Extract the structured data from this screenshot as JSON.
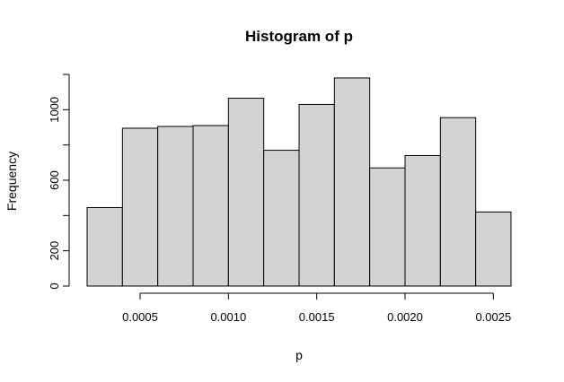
{
  "chart_data": {
    "type": "bar",
    "title": "Histogram of p",
    "xlabel": "p",
    "ylabel": "Frequency",
    "bins": [
      {
        "start": 0.0002,
        "end": 0.0004,
        "value": 445
      },
      {
        "start": 0.0004,
        "end": 0.0006,
        "value": 895
      },
      {
        "start": 0.0006,
        "end": 0.0008,
        "value": 905
      },
      {
        "start": 0.0008,
        "end": 0.001,
        "value": 910
      },
      {
        "start": 0.001,
        "end": 0.0012,
        "value": 1065
      },
      {
        "start": 0.0012,
        "end": 0.0014,
        "value": 770
      },
      {
        "start": 0.0014,
        "end": 0.0016,
        "value": 1030
      },
      {
        "start": 0.0016,
        "end": 0.0018,
        "value": 1180
      },
      {
        "start": 0.0018,
        "end": 0.002,
        "value": 670
      },
      {
        "start": 0.002,
        "end": 0.0022,
        "value": 740
      },
      {
        "start": 0.0022,
        "end": 0.0024,
        "value": 955
      },
      {
        "start": 0.0024,
        "end": 0.0026,
        "value": 420
      }
    ],
    "xlim": [
      0.0002,
      0.0026
    ],
    "ylim": [
      0,
      1200
    ],
    "x_ticks": [
      {
        "value": 0.0005,
        "label": "0.0005"
      },
      {
        "value": 0.001,
        "label": "0.0010"
      },
      {
        "value": 0.0015,
        "label": "0.0015"
      },
      {
        "value": 0.002,
        "label": "0.0020"
      },
      {
        "value": 0.0025,
        "label": "0.0025"
      }
    ],
    "y_ticks": [
      {
        "value": 0,
        "label": "0"
      },
      {
        "value": 200,
        "label": "200"
      },
      {
        "value": 400,
        "label": ""
      },
      {
        "value": 600,
        "label": "600"
      },
      {
        "value": 800,
        "label": ""
      },
      {
        "value": 1000,
        "label": "1000"
      },
      {
        "value": 1200,
        "label": ""
      }
    ],
    "bar_color": "#d3d3d3",
    "grid": false,
    "legend": "none"
  }
}
